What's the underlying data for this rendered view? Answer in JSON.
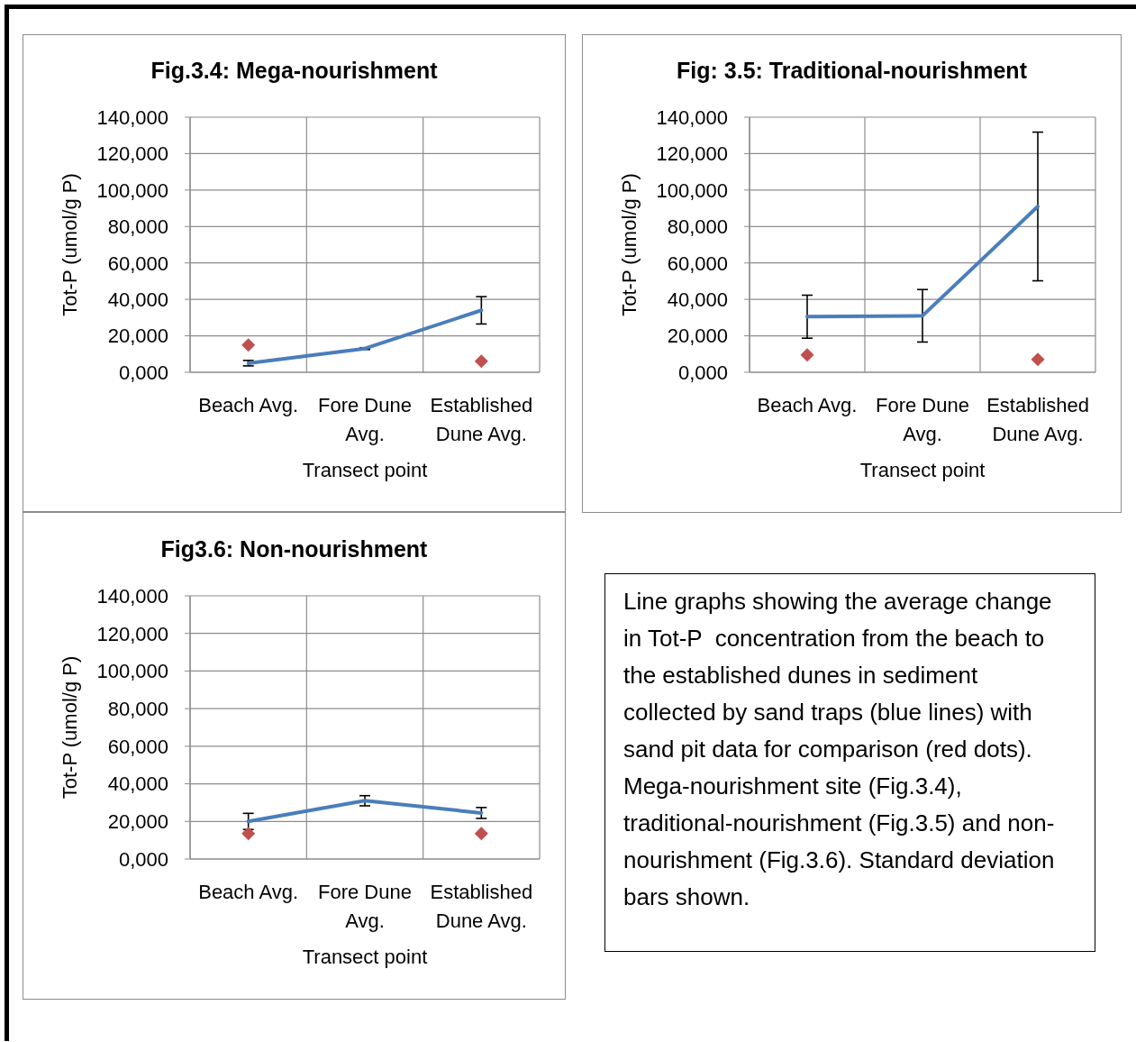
{
  "chart_data": [
    {
      "type": "line",
      "title": "Fig.3.4: Mega-nourishment",
      "xlabel": "Transect point",
      "ylabel": "Tot-P (umol/g P)",
      "categories": [
        "Beach Avg.",
        "Fore Dune Avg.",
        "Established Dune Avg."
      ],
      "series": [
        {
          "type": "line",
          "color": "#4a7ebb",
          "values": [
            5,
            13,
            34
          ],
          "errors": [
            1.5,
            0.5,
            7.5
          ],
          "marker": "none"
        },
        {
          "type": "scatter",
          "color": "#c0504d",
          "values": [
            15,
            null,
            6
          ],
          "marker": "diamond"
        }
      ],
      "ylim": [
        0,
        140
      ],
      "yticks": [
        {
          "value": 0,
          "label": "0,000"
        },
        {
          "value": 20,
          "label": "20,000"
        },
        {
          "value": 40,
          "label": "40,000"
        },
        {
          "value": 60,
          "label": "60,000"
        },
        {
          "value": 80,
          "label": "80,000"
        },
        {
          "value": 100,
          "label": "100,000"
        },
        {
          "value": 120,
          "label": "120,000"
        },
        {
          "value": 140,
          "label": "140,000"
        }
      ],
      "grid": true
    },
    {
      "type": "line",
      "title": "Fig: 3.5: Traditional-nourishment",
      "xlabel": "Transect point",
      "ylabel": "Tot-P (umol/g P)",
      "categories": [
        "Beach Avg.",
        "Fore Dune Avg.",
        "Established Dune Avg."
      ],
      "series": [
        {
          "type": "line",
          "color": "#4a7ebb",
          "values": [
            30.5,
            31,
            91
          ],
          "errors": [
            11.8,
            14.4,
            40.8
          ],
          "marker": "none"
        },
        {
          "type": "scatter",
          "color": "#c0504d",
          "values": [
            9.5,
            null,
            7
          ],
          "marker": "diamond"
        }
      ],
      "ylim": [
        0,
        140
      ],
      "yticks": [
        {
          "value": 0,
          "label": "0,000"
        },
        {
          "value": 20,
          "label": "20,000"
        },
        {
          "value": 40,
          "label": "40,000"
        },
        {
          "value": 60,
          "label": "60,000"
        },
        {
          "value": 80,
          "label": "80,000"
        },
        {
          "value": 100,
          "label": "100,000"
        },
        {
          "value": 120,
          "label": "120,000"
        },
        {
          "value": 140,
          "label": "140,000"
        }
      ],
      "grid": true
    },
    {
      "type": "line",
      "title": "Fig3.6: Non-nourishment",
      "xlabel": "Transect point",
      "ylabel": "Tot-P (umol/g P)",
      "categories": [
        "Beach Avg.",
        "Fore Dune Avg.",
        "Established Dune Avg."
      ],
      "series": [
        {
          "type": "line",
          "color": "#4a7ebb",
          "values": [
            20,
            31,
            24.5
          ],
          "errors": [
            4.3,
            2.7,
            2.9
          ],
          "marker": "none"
        },
        {
          "type": "scatter",
          "color": "#c0504d",
          "values": [
            13.5,
            null,
            13.5
          ],
          "marker": "diamond"
        }
      ],
      "ylim": [
        0,
        140
      ],
      "yticks": [
        {
          "value": 0,
          "label": "0,000"
        },
        {
          "value": 20,
          "label": "20,000"
        },
        {
          "value": 40,
          "label": "40,000"
        },
        {
          "value": 60,
          "label": "60,000"
        },
        {
          "value": 80,
          "label": "80,000"
        },
        {
          "value": 100,
          "label": "100,000"
        },
        {
          "value": 120,
          "label": "120,000"
        },
        {
          "value": 140,
          "label": "140,000"
        }
      ],
      "grid": true
    },
    {
      "type": "other",
      "annotations": [
        "Line graphs showing the average change in Tot-P  concentration from the beach to the established dunes in sediment collected by sand traps (blue lines) with sand pit data for comparison (red dots). Mega-nourishment site (Fig.3.4), traditional-nourishment (Fig.3.5) and non-nourishment (Fig.3.6). Standard deviation bars shown."
      ]
    }
  ]
}
